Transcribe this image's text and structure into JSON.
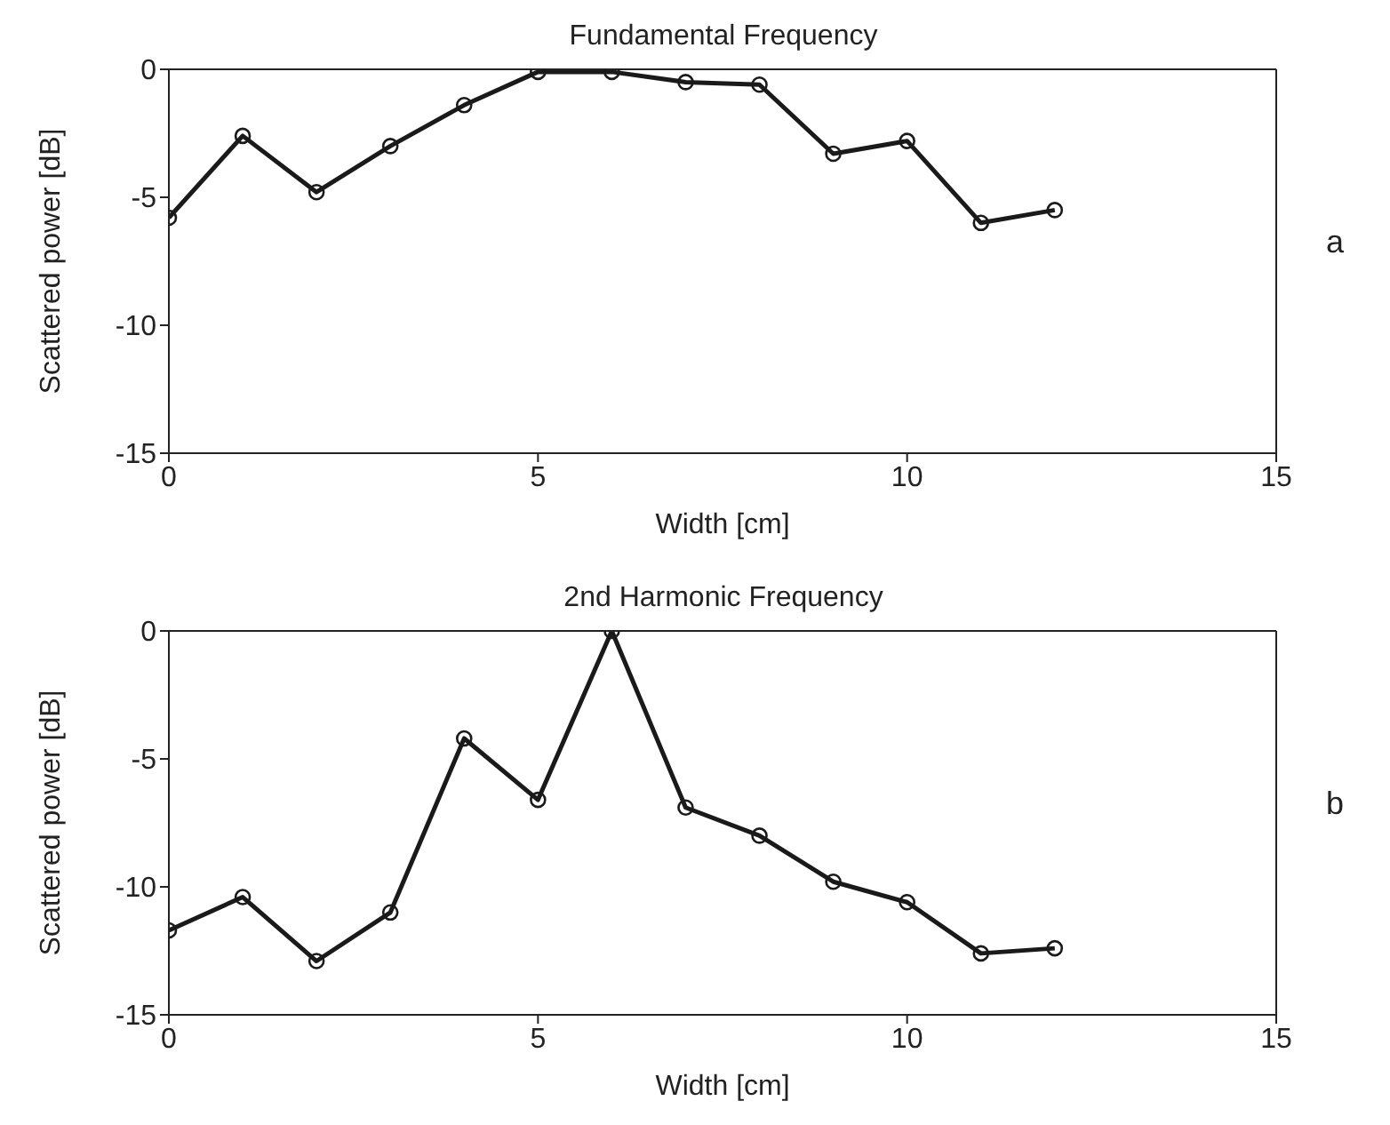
{
  "chart_data": [
    {
      "type": "line",
      "title": "Fundamental Frequency",
      "xlabel": "Width [cm]",
      "ylabel": "Scattered power [dB]",
      "annotations": [
        "a"
      ],
      "x": [
        0,
        1,
        2,
        3,
        4,
        5,
        6,
        7,
        8,
        9,
        10,
        11,
        12
      ],
      "xlim": [
        0,
        15
      ],
      "xticks": [
        0,
        5,
        10,
        15
      ],
      "ylim": [
        -15,
        0
      ],
      "yticks": [
        -15,
        -10,
        -5,
        0
      ],
      "marker": "circle",
      "line_style": "solid",
      "series": [
        {
          "color": "#1a1a1a",
          "values": [
            -5.8,
            -2.6,
            -4.8,
            -3.0,
            -1.4,
            -0.1,
            -0.1,
            -0.5,
            -0.6,
            -3.3,
            -2.8,
            -6.0,
            -5.5
          ]
        }
      ]
    },
    {
      "type": "line",
      "title": "2nd Harmonic Frequency",
      "xlabel": "Width [cm]",
      "ylabel": "Scattered power [dB]",
      "annotations": [
        "b"
      ],
      "x": [
        0,
        1,
        2,
        3,
        4,
        5,
        6,
        7,
        8,
        9,
        10,
        11,
        12
      ],
      "xlim": [
        0,
        15
      ],
      "xticks": [
        0,
        5,
        10,
        15
      ],
      "ylim": [
        -15,
        0
      ],
      "yticks": [
        -15,
        -10,
        -5,
        0
      ],
      "marker": "circle",
      "line_style": "solid",
      "series": [
        {
          "color": "#1a1a1a",
          "values": [
            -11.7,
            -10.4,
            -12.9,
            -11.0,
            -4.2,
            -6.6,
            0,
            -6.9,
            -8.0,
            -9.8,
            -10.6,
            -12.6,
            -12.4
          ]
        }
      ]
    }
  ]
}
